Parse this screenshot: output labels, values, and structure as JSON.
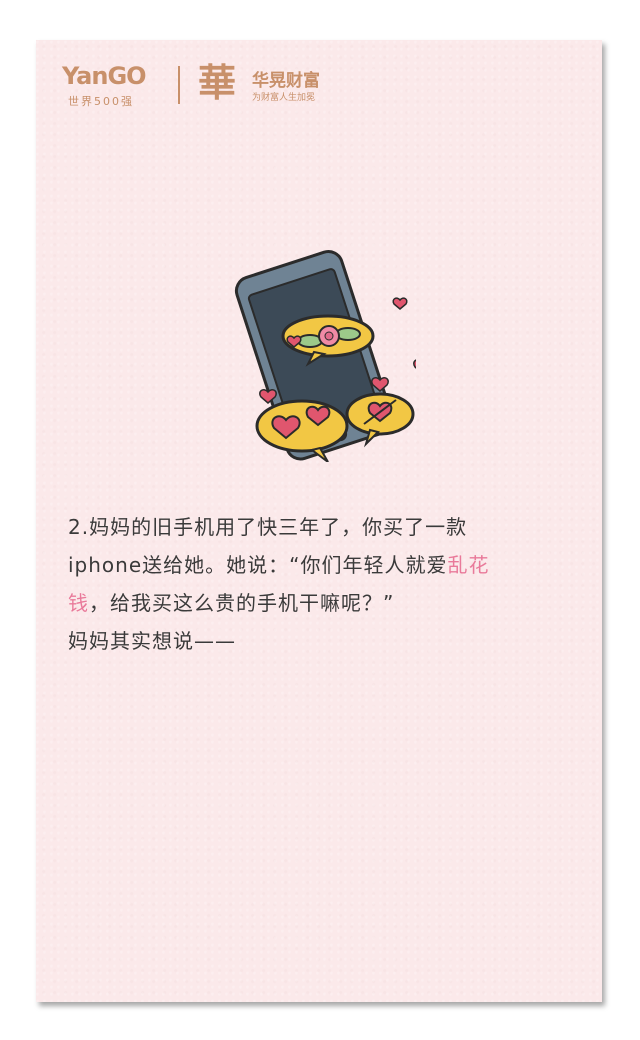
{
  "header": {
    "yango_logo_text": "YanGO",
    "yango_subtitle": "世界500强",
    "hua_logo_char": "華",
    "hua_brand_name": "华晃财富",
    "hua_tagline": "为财富人生加冕"
  },
  "illustration": {
    "icon": "phone-with-hearts-icon"
  },
  "body": {
    "line1": "2.妈妈的旧手机用了快三年了，你买了一款",
    "line2_a": "iphone送给她。她说：“你们年轻人就爱",
    "line2_hl": "乱花",
    "line3_hl": "钱",
    "line3_b": "，给我买这么贵的手机干嘛呢？”",
    "line4": "妈妈其实想说——"
  },
  "colors": {
    "card_bg": "#fbe9ea",
    "brand": "#c8906a",
    "highlight": "#e97a9a",
    "text": "#3a3a3a"
  }
}
